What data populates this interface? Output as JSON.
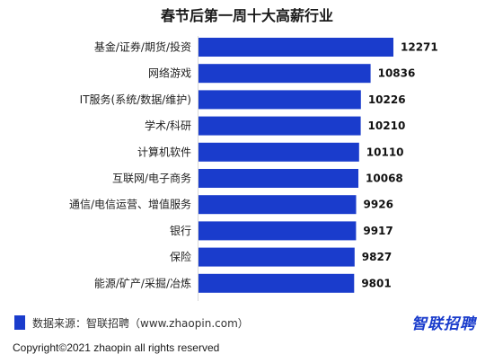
{
  "title": "春节后第一周十大高薪行业",
  "chart_data": {
    "type": "bar",
    "orientation": "horizontal",
    "title": "春节后第一周十大高薪行业",
    "categories": [
      "基金/证券/期货/投资",
      "网络游戏",
      "IT服务(系统/数据/维护)",
      "学术/科研",
      "计算机软件",
      "互联网/电子商务",
      "通信/电信运营、增值服务",
      "银行",
      "保险",
      "能源/矿产/采掘/冶炼"
    ],
    "values": [
      12271,
      10836,
      10226,
      10210,
      10110,
      10068,
      9926,
      9917,
      9827,
      9801
    ],
    "value_labels": [
      "12271",
      "10836",
      "10226",
      "10210",
      "10110",
      "10068",
      "9926",
      "9917",
      "9827",
      "9801"
    ],
    "xlim": [
      0,
      12271
    ],
    "bar_color": "#1a3ccc",
    "grid": false,
    "legend": "none"
  },
  "source": "数据来源：智联招聘（www.zhaopin.com）",
  "brand": "智联招聘",
  "copyright": "Copyright©2021 zhaopin all rights reserved"
}
